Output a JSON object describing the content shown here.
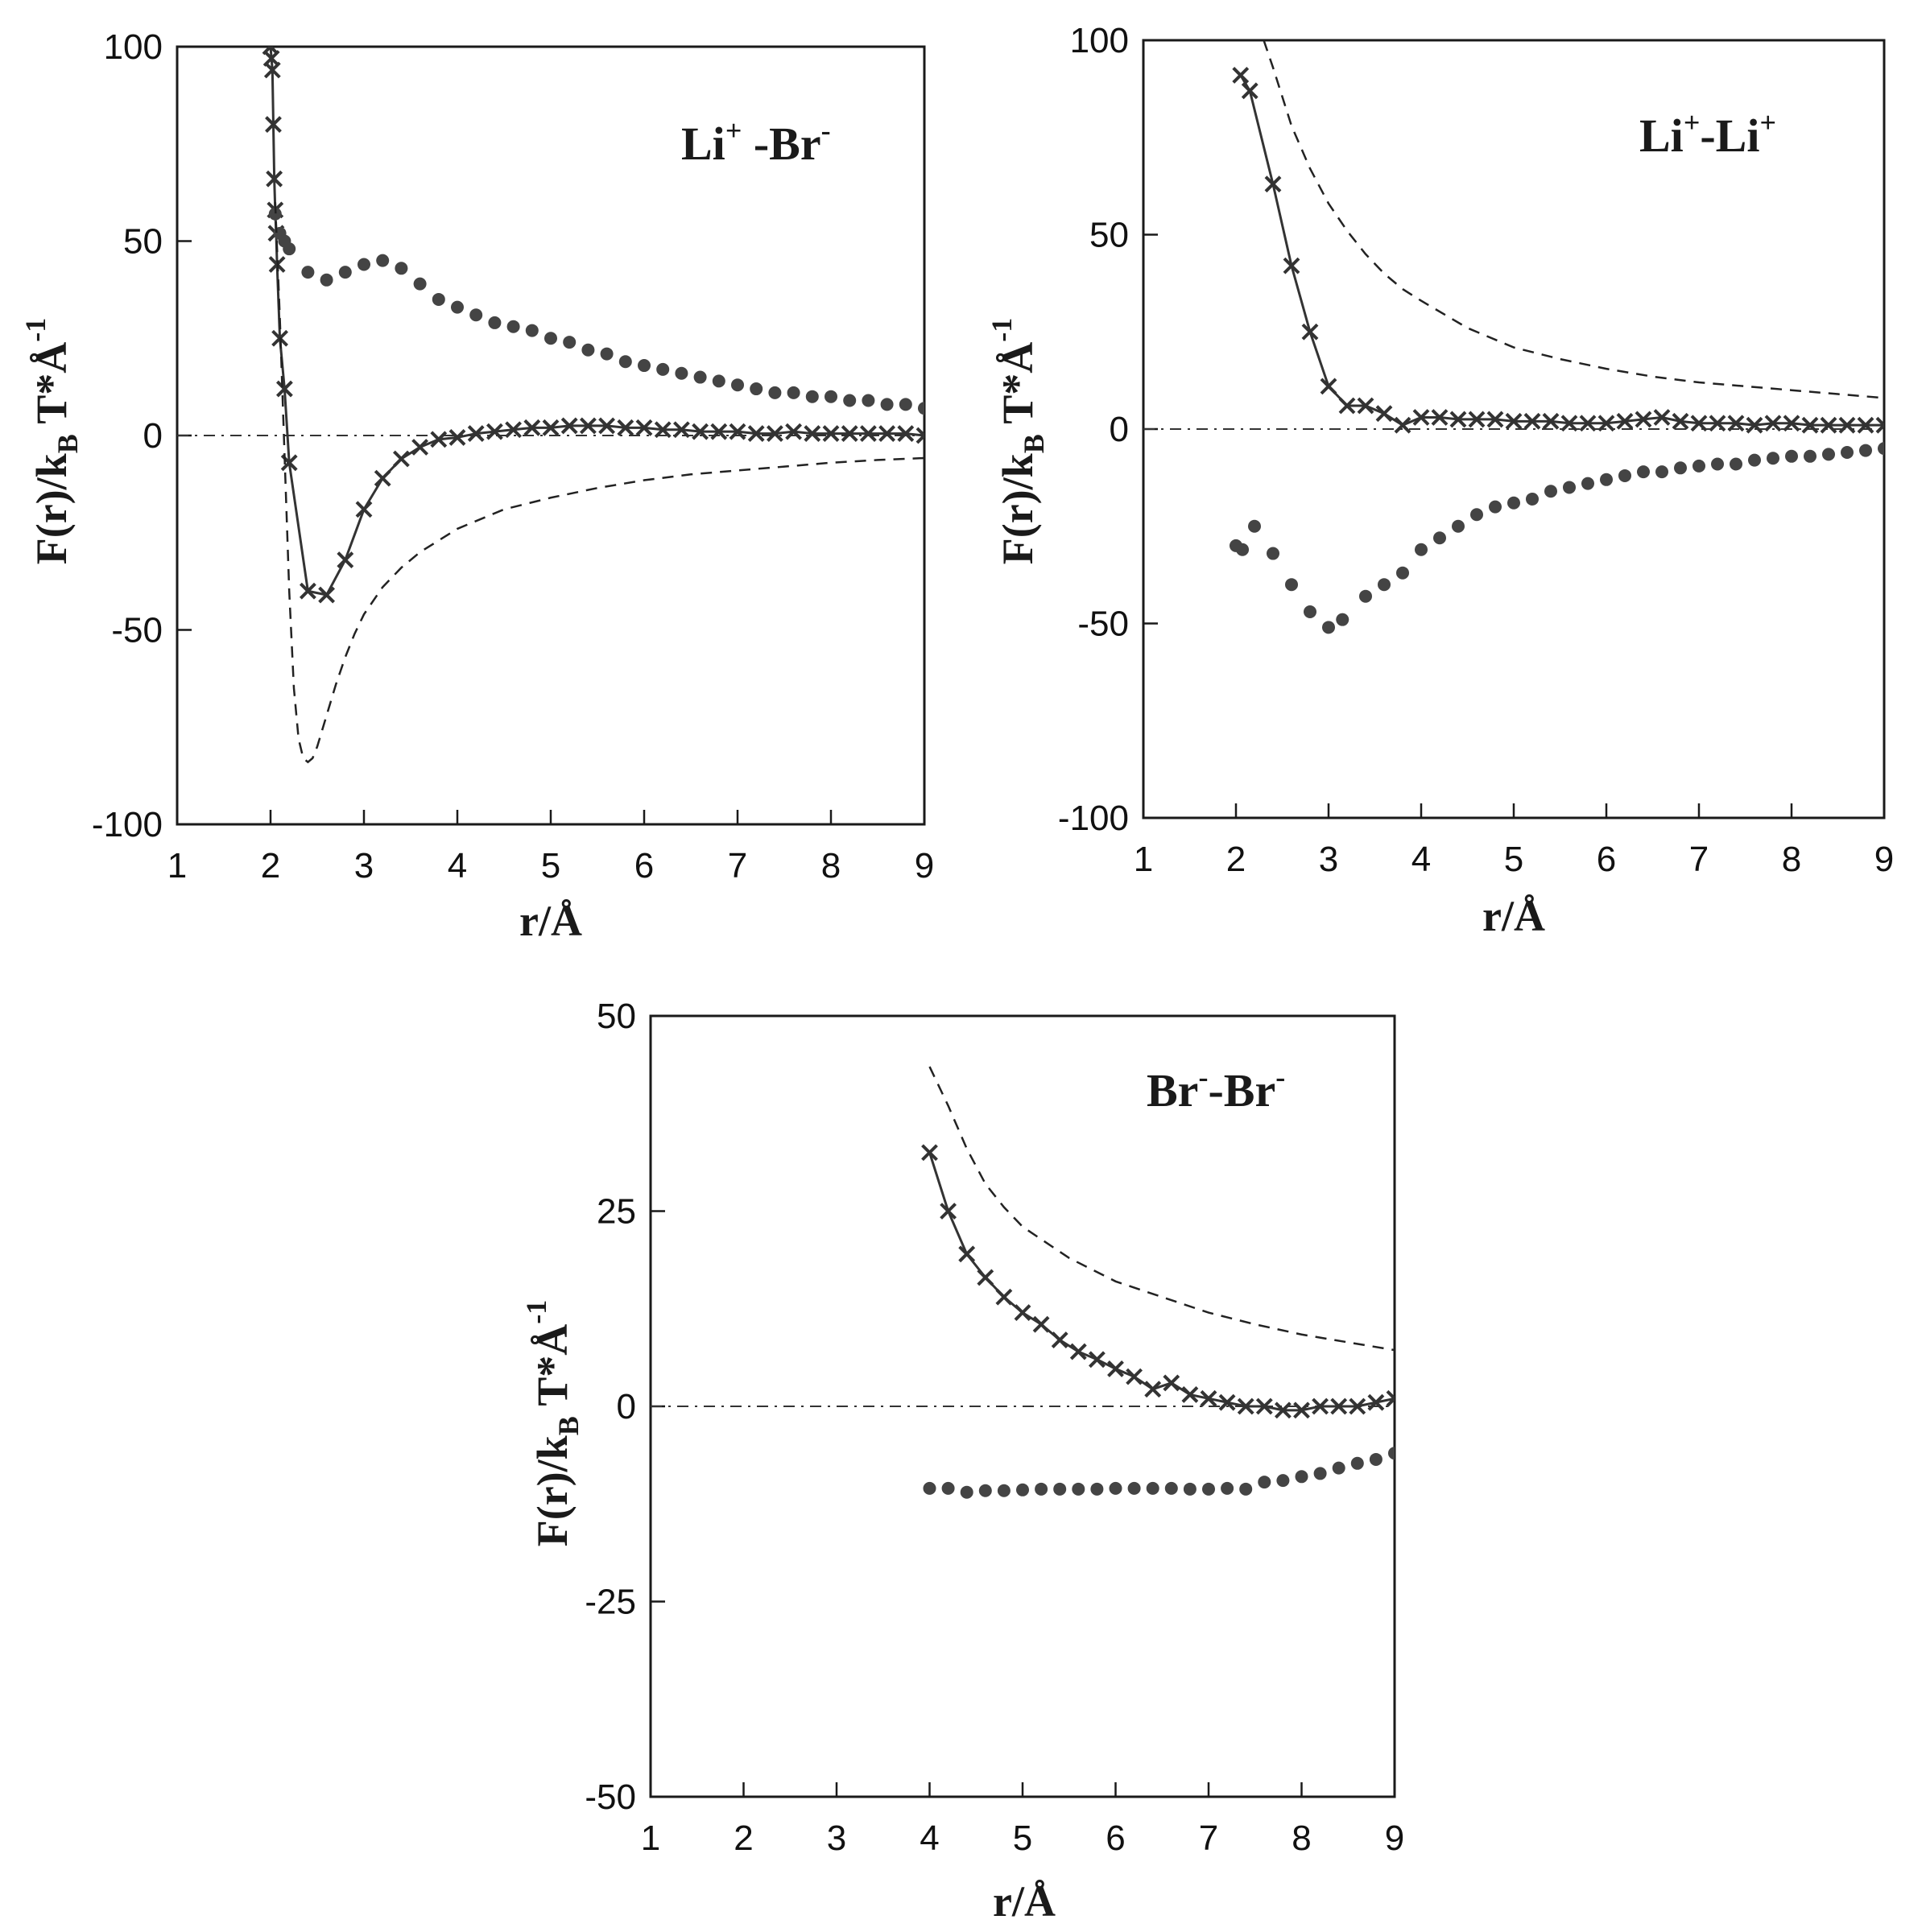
{
  "chart_data": [
    {
      "type": "line",
      "panel_label": {
        "base1": "Li",
        "sup1": "+",
        "sep": " -",
        "base2": "Br",
        "sup2": "-"
      },
      "xlabel": "r/Å",
      "ylabel": {
        "a": "F(r)/k",
        "sub": "B",
        "b": " T*Å",
        "sup": "-1"
      },
      "xlim": [
        1,
        9
      ],
      "ylim": [
        -100,
        100
      ],
      "xticks": [
        "1",
        "2",
        "3",
        "4",
        "5",
        "6",
        "7",
        "8",
        "9"
      ],
      "yticks": [
        "100",
        "50",
        "0",
        "-50",
        "-100"
      ],
      "ytick_values": [
        100,
        50,
        0,
        -50,
        -100
      ],
      "zero_line": true,
      "series": [
        {
          "style": "x-solid",
          "x": [
            2.0,
            2.01,
            2.02,
            2.03,
            2.04,
            2.05,
            2.06,
            2.07,
            2.1,
            2.15,
            2.2,
            2.4,
            2.6,
            2.8,
            3.0,
            3.2,
            3.4,
            3.6,
            3.8,
            4.0,
            4.2,
            4.4,
            4.6,
            4.8,
            5.0,
            5.2,
            5.4,
            5.6,
            5.8,
            6.0,
            6.2,
            6.4,
            6.6,
            6.8,
            7.0,
            7.2,
            7.4,
            7.6,
            7.8,
            8.0,
            8.2,
            8.4,
            8.6,
            8.8,
            9.0
          ],
          "y": [
            100,
            97,
            94,
            80,
            66,
            58,
            52,
            44,
            25,
            12,
            -7,
            -40,
            -41,
            -32,
            -19,
            -11,
            -6,
            -3,
            -1,
            -0.5,
            0.5,
            1,
            1.5,
            2,
            2,
            2.5,
            2.5,
            2.5,
            2,
            2,
            1.5,
            1.5,
            1,
            1,
            1,
            0.5,
            0.5,
            1,
            0.5,
            0.5,
            0.5,
            0.5,
            0.5,
            0.5,
            0
          ]
        },
        {
          "style": "dots",
          "x": [
            2.05,
            2.1,
            2.15,
            2.2,
            2.4,
            2.6,
            2.8,
            3.0,
            3.2,
            3.4,
            3.6,
            3.8,
            4.0,
            4.2,
            4.4,
            4.6,
            4.8,
            5.0,
            5.2,
            5.4,
            5.6,
            5.8,
            6.0,
            6.2,
            6.4,
            6.6,
            6.8,
            7.0,
            7.2,
            7.4,
            7.6,
            7.8,
            8.0,
            8.2,
            8.4,
            8.6,
            8.8,
            9.0
          ],
          "y": [
            57,
            52,
            50,
            48,
            42,
            40,
            42,
            44,
            45,
            43,
            39,
            35,
            33,
            31,
            29,
            28,
            27,
            25,
            24,
            22,
            21,
            19,
            18,
            17,
            16,
            15,
            14,
            13,
            12,
            11,
            11,
            10,
            10,
            9,
            9,
            8,
            8,
            7
          ]
        },
        {
          "style": "dashed",
          "x": [
            2.05,
            2.1,
            2.15,
            2.2,
            2.25,
            2.3,
            2.35,
            2.4,
            2.45,
            2.5,
            2.55,
            2.6,
            2.7,
            2.8,
            2.9,
            3.0,
            3.2,
            3.4,
            3.6,
            3.8,
            4.0,
            4.5,
            5.0,
            5.5,
            6.0,
            6.5,
            7.0,
            7.5,
            8.0,
            8.5,
            9.0
          ],
          "y": [
            60,
            30,
            -5,
            -40,
            -65,
            -78,
            -83,
            -84,
            -83,
            -80,
            -76,
            -72,
            -64,
            -57,
            -51,
            -46,
            -39,
            -34,
            -30,
            -27,
            -24,
            -19,
            -16,
            -13.5,
            -11.5,
            -10,
            -9,
            -8,
            -7,
            -6.3,
            -5.8
          ]
        }
      ]
    },
    {
      "type": "line",
      "panel_label": {
        "base1": "Li",
        "sup1": "+",
        "sep": "-",
        "base2": "Li",
        "sup2": "+"
      },
      "xlabel": "r/Å",
      "ylabel": {
        "a": "F(r)/k",
        "sub": "B",
        "b": " T*Å",
        "sup": "-1"
      },
      "xlim": [
        1,
        9
      ],
      "ylim": [
        -100,
        100
      ],
      "xticks": [
        "1",
        "2",
        "3",
        "4",
        "5",
        "6",
        "7",
        "8",
        "9"
      ],
      "yticks": [
        "100",
        "50",
        "0",
        "-50",
        "-100"
      ],
      "ytick_values": [
        100,
        50,
        0,
        -50,
        -100
      ],
      "zero_line": true,
      "series": [
        {
          "style": "x-solid",
          "x": [
            2.05,
            2.15,
            2.4,
            2.6,
            2.8,
            3.0,
            3.2,
            3.4,
            3.6,
            3.8,
            4.0,
            4.2,
            4.4,
            4.6,
            4.8,
            5.0,
            5.2,
            5.4,
            5.6,
            5.8,
            6.0,
            6.2,
            6.4,
            6.6,
            6.8,
            7.0,
            7.2,
            7.4,
            7.6,
            7.8,
            8.0,
            8.2,
            8.4,
            8.6,
            8.8,
            9.0
          ],
          "y": [
            91,
            87,
            63,
            42,
            25,
            11,
            6,
            6,
            4,
            1,
            3,
            3,
            2.5,
            2.5,
            2.5,
            2,
            2,
            2,
            1.5,
            1.5,
            1.5,
            2,
            2.5,
            3,
            2,
            1.5,
            1.5,
            1.5,
            1,
            1.5,
            1.5,
            1,
            1,
            1,
            1,
            1
          ]
        },
        {
          "style": "dots",
          "x": [
            2.0,
            2.07,
            2.2,
            2.4,
            2.6,
            2.8,
            3.0,
            3.15,
            3.4,
            3.6,
            3.8,
            4.0,
            4.2,
            4.4,
            4.6,
            4.8,
            5.0,
            5.2,
            5.4,
            5.6,
            5.8,
            6.0,
            6.2,
            6.4,
            6.6,
            6.8,
            7.0,
            7.2,
            7.4,
            7.6,
            7.8,
            8.0,
            8.2,
            8.4,
            8.6,
            8.8,
            9.0
          ],
          "y": [
            -30,
            -31,
            -25,
            -32,
            -40,
            -47,
            -51,
            -49,
            -43,
            -40,
            -37,
            -31,
            -28,
            -25,
            -22,
            -20,
            -19,
            -18,
            -16,
            -15,
            -14,
            -13,
            -12,
            -11,
            -11,
            -10,
            -9.5,
            -9,
            -9,
            -8,
            -7.5,
            -7,
            -7,
            -6.5,
            -6,
            -5.5,
            -5
          ]
        },
        {
          "style": "dashed",
          "x": [
            2.3,
            2.4,
            2.6,
            2.8,
            3.0,
            3.2,
            3.4,
            3.6,
            3.8,
            4.0,
            4.5,
            5.0,
            5.5,
            6.0,
            6.5,
            7.0,
            7.5,
            8.0,
            8.5,
            9.0
          ],
          "y": [
            100,
            93,
            78,
            67,
            58,
            51,
            45,
            40,
            36,
            33,
            26,
            21,
            18,
            15.5,
            13.5,
            12,
            11,
            10,
            9,
            8
          ]
        }
      ]
    },
    {
      "type": "line",
      "panel_label": {
        "base1": "Br",
        "sup1": "-",
        "sep": "-",
        "base2": "Br",
        "sup2": "-"
      },
      "xlabel": "r/Å",
      "ylabel": {
        "a": "F(r)/k",
        "sub": "B",
        "b": " T*Å",
        "sup": "-1"
      },
      "xlim": [
        1,
        9
      ],
      "ylim": [
        -50,
        50
      ],
      "xticks": [
        "1",
        "2",
        "3",
        "4",
        "5",
        "6",
        "7",
        "8",
        "9"
      ],
      "yticks": [
        "50",
        "25",
        "0",
        "-25",
        "-50"
      ],
      "ytick_values": [
        50,
        25,
        0,
        -25,
        -50
      ],
      "zero_line": true,
      "series": [
        {
          "style": "x-solid",
          "x": [
            4.0,
            4.2,
            4.4,
            4.6,
            4.8,
            5.0,
            5.2,
            5.4,
            5.6,
            5.8,
            6.0,
            6.2,
            6.4,
            6.6,
            6.8,
            7.0,
            7.2,
            7.4,
            7.6,
            7.8,
            8.0,
            8.2,
            8.4,
            8.6,
            8.8,
            9.0
          ],
          "y": [
            32.5,
            25,
            19.5,
            16.5,
            14,
            12,
            10.5,
            8.5,
            7,
            6,
            4.8,
            3.8,
            2.2,
            3,
            1.5,
            1,
            0.5,
            0,
            0,
            -0.5,
            -0.5,
            0,
            0,
            0,
            0.5,
            1
          ]
        },
        {
          "style": "dots",
          "x": [
            4.0,
            4.2,
            4.4,
            4.6,
            4.8,
            5.0,
            5.2,
            5.4,
            5.6,
            5.8,
            6.0,
            6.2,
            6.4,
            6.6,
            6.8,
            7.0,
            7.2,
            7.4,
            7.6,
            7.8,
            8.0,
            8.2,
            8.4,
            8.6,
            8.8,
            9.0
          ],
          "y": [
            -10.5,
            -10.5,
            -11,
            -10.8,
            -10.8,
            -10.7,
            -10.6,
            -10.6,
            -10.6,
            -10.6,
            -10.5,
            -10.5,
            -10.5,
            -10.5,
            -10.6,
            -10.6,
            -10.5,
            -10.6,
            -9.7,
            -9.5,
            -9,
            -8.6,
            -7.9,
            -7.3,
            -6.8,
            -6
          ]
        },
        {
          "style": "dashed",
          "x": [
            4.0,
            4.2,
            4.4,
            4.6,
            4.8,
            5.0,
            5.5,
            6.0,
            6.5,
            7.0,
            7.5,
            8.0,
            8.5,
            9.0
          ],
          "y": [
            43.5,
            38.5,
            33,
            28.5,
            25.5,
            23,
            19,
            16,
            14,
            12,
            10.5,
            9.2,
            8.2,
            7.2
          ]
        }
      ]
    }
  ]
}
